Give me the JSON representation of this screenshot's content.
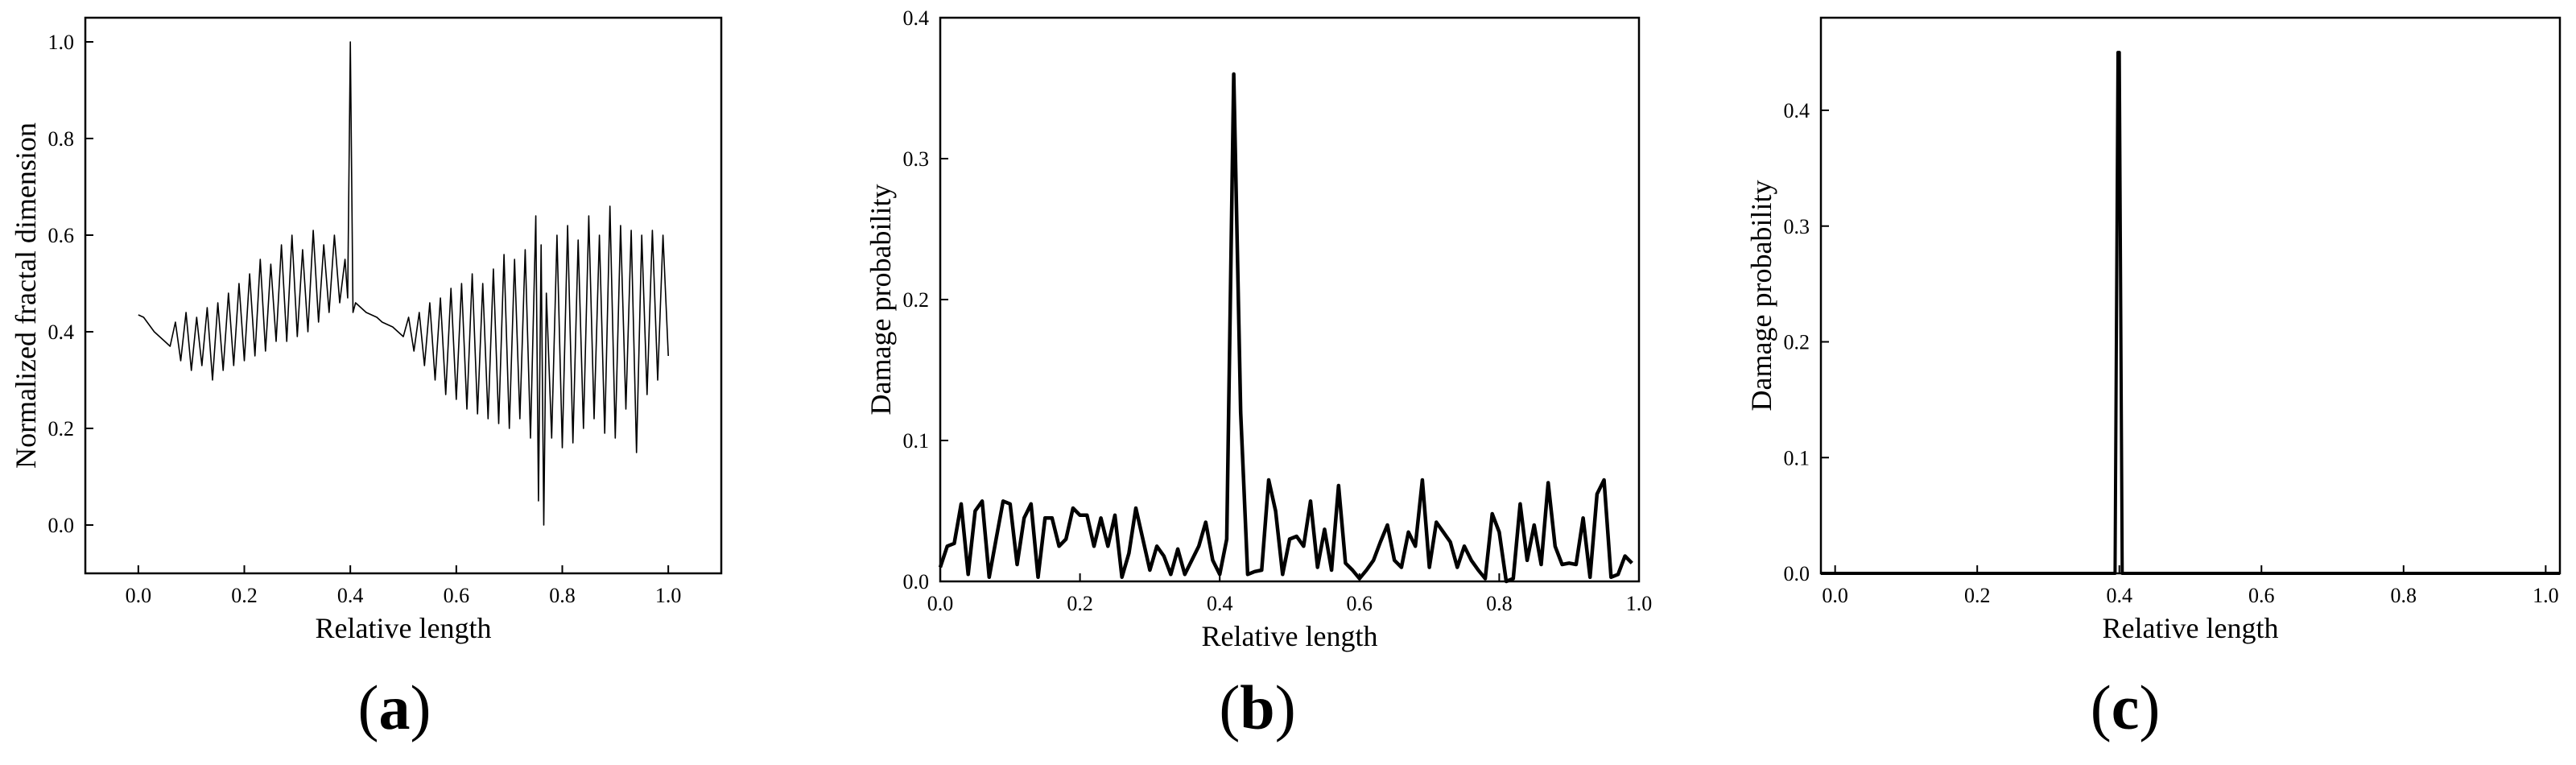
{
  "chart_data": [
    {
      "type": "line",
      "panel_label": "a",
      "xlabel": "Relative length",
      "ylabel": "Normalized fractal dimension",
      "xlim": [
        -0.1,
        1.1
      ],
      "ylim": [
        -0.1,
        1.05
      ],
      "xticks": [
        "0.0",
        "0.2",
        "0.4",
        "0.6",
        "0.8",
        "1.0"
      ],
      "yticks": [
        "0.0",
        "0.2",
        "0.4",
        "0.6",
        "0.8",
        "1.0"
      ],
      "series": [
        {
          "points": [
            [
              0.0,
              0.435
            ],
            [
              0.01,
              0.43
            ],
            [
              0.02,
              0.415
            ],
            [
              0.03,
              0.4
            ],
            [
              0.04,
              0.39
            ],
            [
              0.05,
              0.38
            ],
            [
              0.06,
              0.37
            ],
            [
              0.07,
              0.42
            ],
            [
              0.08,
              0.34
            ],
            [
              0.09,
              0.44
            ],
            [
              0.1,
              0.32
            ],
            [
              0.11,
              0.43
            ],
            [
              0.12,
              0.33
            ],
            [
              0.13,
              0.45
            ],
            [
              0.14,
              0.3
            ],
            [
              0.15,
              0.46
            ],
            [
              0.16,
              0.32
            ],
            [
              0.17,
              0.48
            ],
            [
              0.18,
              0.33
            ],
            [
              0.19,
              0.5
            ],
            [
              0.2,
              0.34
            ],
            [
              0.21,
              0.52
            ],
            [
              0.22,
              0.35
            ],
            [
              0.23,
              0.55
            ],
            [
              0.24,
              0.36
            ],
            [
              0.25,
              0.54
            ],
            [
              0.26,
              0.38
            ],
            [
              0.27,
              0.58
            ],
            [
              0.28,
              0.38
            ],
            [
              0.29,
              0.6
            ],
            [
              0.3,
              0.39
            ],
            [
              0.31,
              0.57
            ],
            [
              0.32,
              0.4
            ],
            [
              0.33,
              0.61
            ],
            [
              0.34,
              0.42
            ],
            [
              0.35,
              0.58
            ],
            [
              0.36,
              0.44
            ],
            [
              0.37,
              0.6
            ],
            [
              0.38,
              0.46
            ],
            [
              0.39,
              0.55
            ],
            [
              0.395,
              0.47
            ],
            [
              0.4,
              1.0
            ],
            [
              0.405,
              0.44
            ],
            [
              0.41,
              0.46
            ],
            [
              0.42,
              0.45
            ],
            [
              0.43,
              0.44
            ],
            [
              0.44,
              0.435
            ],
            [
              0.45,
              0.43
            ],
            [
              0.46,
              0.42
            ],
            [
              0.47,
              0.415
            ],
            [
              0.48,
              0.41
            ],
            [
              0.49,
              0.4
            ],
            [
              0.5,
              0.39
            ],
            [
              0.51,
              0.43
            ],
            [
              0.52,
              0.36
            ],
            [
              0.53,
              0.44
            ],
            [
              0.54,
              0.33
            ],
            [
              0.55,
              0.46
            ],
            [
              0.56,
              0.3
            ],
            [
              0.57,
              0.47
            ],
            [
              0.58,
              0.27
            ],
            [
              0.59,
              0.49
            ],
            [
              0.6,
              0.26
            ],
            [
              0.61,
              0.5
            ],
            [
              0.62,
              0.24
            ],
            [
              0.63,
              0.52
            ],
            [
              0.64,
              0.23
            ],
            [
              0.65,
              0.5
            ],
            [
              0.66,
              0.22
            ],
            [
              0.67,
              0.53
            ],
            [
              0.68,
              0.21
            ],
            [
              0.69,
              0.56
            ],
            [
              0.7,
              0.2
            ],
            [
              0.71,
              0.55
            ],
            [
              0.72,
              0.22
            ],
            [
              0.73,
              0.57
            ],
            [
              0.74,
              0.18
            ],
            [
              0.75,
              0.64
            ],
            [
              0.755,
              0.05
            ],
            [
              0.76,
              0.58
            ],
            [
              0.765,
              0.0
            ],
            [
              0.77,
              0.48
            ],
            [
              0.78,
              0.18
            ],
            [
              0.79,
              0.6
            ],
            [
              0.8,
              0.16
            ],
            [
              0.81,
              0.62
            ],
            [
              0.82,
              0.17
            ],
            [
              0.83,
              0.59
            ],
            [
              0.84,
              0.2
            ],
            [
              0.85,
              0.64
            ],
            [
              0.86,
              0.22
            ],
            [
              0.87,
              0.6
            ],
            [
              0.88,
              0.19
            ],
            [
              0.89,
              0.66
            ],
            [
              0.9,
              0.18
            ],
            [
              0.91,
              0.62
            ],
            [
              0.92,
              0.24
            ],
            [
              0.93,
              0.61
            ],
            [
              0.94,
              0.15
            ],
            [
              0.95,
              0.6
            ],
            [
              0.96,
              0.27
            ],
            [
              0.97,
              0.61
            ],
            [
              0.98,
              0.3
            ],
            [
              0.99,
              0.6
            ],
            [
              1.0,
              0.35
            ]
          ]
        }
      ]
    },
    {
      "type": "line",
      "panel_label": "b",
      "xlabel": "Relative length",
      "ylabel": "Damage probability",
      "xlim": [
        0.0,
        1.0
      ],
      "ylim": [
        0.0,
        0.4
      ],
      "xticks": [
        "0.0",
        "0.2",
        "0.4",
        "0.6",
        "0.8",
        "1.0"
      ],
      "yticks": [
        "0.0",
        "0.1",
        "0.2",
        "0.3",
        "0.4"
      ],
      "series": [
        {
          "points": [
            [
              0.0,
              0.01
            ],
            [
              0.01,
              0.025
            ],
            [
              0.02,
              0.027
            ],
            [
              0.03,
              0.055
            ],
            [
              0.04,
              0.005
            ],
            [
              0.05,
              0.05
            ],
            [
              0.06,
              0.057
            ],
            [
              0.07,
              0.003
            ],
            [
              0.08,
              0.03
            ],
            [
              0.09,
              0.057
            ],
            [
              0.1,
              0.055
            ],
            [
              0.11,
              0.012
            ],
            [
              0.12,
              0.045
            ],
            [
              0.13,
              0.055
            ],
            [
              0.14,
              0.003
            ],
            [
              0.15,
              0.045
            ],
            [
              0.16,
              0.045
            ],
            [
              0.17,
              0.025
            ],
            [
              0.18,
              0.03
            ],
            [
              0.19,
              0.052
            ],
            [
              0.2,
              0.047
            ],
            [
              0.21,
              0.047
            ],
            [
              0.22,
              0.025
            ],
            [
              0.23,
              0.045
            ],
            [
              0.24,
              0.025
            ],
            [
              0.25,
              0.047
            ],
            [
              0.26,
              0.003
            ],
            [
              0.27,
              0.02
            ],
            [
              0.28,
              0.052
            ],
            [
              0.29,
              0.03
            ],
            [
              0.3,
              0.008
            ],
            [
              0.31,
              0.025
            ],
            [
              0.32,
              0.018
            ],
            [
              0.33,
              0.005
            ],
            [
              0.34,
              0.023
            ],
            [
              0.35,
              0.005
            ],
            [
              0.36,
              0.015
            ],
            [
              0.37,
              0.025
            ],
            [
              0.38,
              0.042
            ],
            [
              0.39,
              0.015
            ],
            [
              0.4,
              0.005
            ],
            [
              0.41,
              0.03
            ],
            [
              0.42,
              0.36
            ],
            [
              0.43,
              0.12
            ],
            [
              0.44,
              0.005
            ],
            [
              0.45,
              0.007
            ],
            [
              0.46,
              0.008
            ],
            [
              0.47,
              0.072
            ],
            [
              0.48,
              0.05
            ],
            [
              0.49,
              0.005
            ],
            [
              0.5,
              0.03
            ],
            [
              0.51,
              0.032
            ],
            [
              0.52,
              0.025
            ],
            [
              0.53,
              0.057
            ],
            [
              0.54,
              0.01
            ],
            [
              0.55,
              0.037
            ],
            [
              0.56,
              0.008
            ],
            [
              0.57,
              0.068
            ],
            [
              0.58,
              0.013
            ],
            [
              0.59,
              0.008
            ],
            [
              0.6,
              0.002
            ],
            [
              0.61,
              0.008
            ],
            [
              0.62,
              0.015
            ],
            [
              0.63,
              0.028
            ],
            [
              0.64,
              0.04
            ],
            [
              0.65,
              0.015
            ],
            [
              0.66,
              0.01
            ],
            [
              0.67,
              0.035
            ],
            [
              0.68,
              0.025
            ],
            [
              0.69,
              0.072
            ],
            [
              0.7,
              0.01
            ],
            [
              0.71,
              0.042
            ],
            [
              0.72,
              0.035
            ],
            [
              0.73,
              0.028
            ],
            [
              0.74,
              0.01
            ],
            [
              0.75,
              0.025
            ],
            [
              0.76,
              0.015
            ],
            [
              0.77,
              0.008
            ],
            [
              0.78,
              0.002
            ],
            [
              0.79,
              0.048
            ],
            [
              0.8,
              0.035
            ],
            [
              0.81,
              0.0
            ],
            [
              0.82,
              0.002
            ],
            [
              0.83,
              0.055
            ],
            [
              0.84,
              0.015
            ],
            [
              0.85,
              0.04
            ],
            [
              0.86,
              0.012
            ],
            [
              0.87,
              0.07
            ],
            [
              0.88,
              0.025
            ],
            [
              0.89,
              0.012
            ],
            [
              0.9,
              0.013
            ],
            [
              0.91,
              0.012
            ],
            [
              0.92,
              0.045
            ],
            [
              0.93,
              0.003
            ],
            [
              0.94,
              0.062
            ],
            [
              0.95,
              0.072
            ],
            [
              0.96,
              0.003
            ],
            [
              0.97,
              0.005
            ],
            [
              0.98,
              0.018
            ],
            [
              0.99,
              0.013
            ]
          ]
        }
      ]
    },
    {
      "type": "line",
      "panel_label": "c",
      "xlabel": "Relative length",
      "ylabel": "Damage probability",
      "xlim": [
        -0.02,
        1.02
      ],
      "ylim": [
        0.0,
        0.48
      ],
      "xticks": [
        "0.0",
        "0.2",
        "0.4",
        "0.6",
        "0.8",
        "1.0"
      ],
      "yticks": [
        "0.0",
        "0.1",
        "0.2",
        "0.3",
        "0.4"
      ],
      "series": [
        {
          "points": [
            [
              -0.02,
              0.0
            ],
            [
              0.394,
              0.0
            ],
            [
              0.398,
              0.45
            ],
            [
              0.4,
              0.45
            ],
            [
              0.404,
              0.0
            ],
            [
              1.02,
              0.0
            ]
          ]
        }
      ]
    }
  ]
}
